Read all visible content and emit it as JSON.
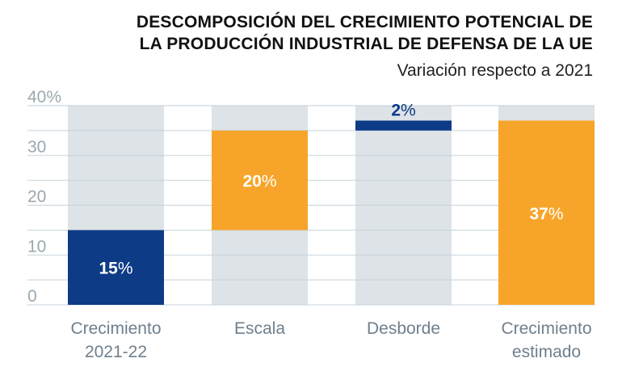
{
  "chart_data": {
    "type": "bar",
    "subtype": "waterfall",
    "title_lines": [
      "DESCOMPOSICIÓN DEL CRECIMIENTO POTENCIAL DE",
      "LA PRODUCCIÓN INDUSTRIAL DE DEFENSA DE LA UE"
    ],
    "subtitle": "Variación respecto a 2021",
    "xlabel": "",
    "ylabel": "",
    "ylim": [
      0,
      40
    ],
    "yticks": [
      0,
      10,
      20,
      30,
      40
    ],
    "ytick_labels": [
      "0",
      "10",
      "20",
      "30",
      "40%"
    ],
    "grid": true,
    "categories": [
      [
        "Crecimiento",
        "2021-22"
      ],
      [
        "Escala"
      ],
      [
        "Desborde"
      ],
      [
        "Crecimiento",
        "estimado"
      ]
    ],
    "bars": [
      {
        "start": 0,
        "end": 15,
        "value": 15,
        "label_num": "15",
        "label_unit": "%",
        "color": "#0d3b86",
        "label_color": "#ffffff"
      },
      {
        "start": 15,
        "end": 35,
        "value": 20,
        "label_num": "20",
        "label_unit": "%",
        "color": "#f7a52a",
        "label_color": "#ffffff"
      },
      {
        "start": 35,
        "end": 37,
        "value": 2,
        "label_num": "2",
        "label_unit": "%",
        "color": "#0d3b86",
        "label_color": "#0d3b86"
      },
      {
        "start": 0,
        "end": 37,
        "value": 37,
        "label_num": "37",
        "label_unit": "%",
        "color": "#f7a52a",
        "label_color": "#ffffff"
      }
    ],
    "colors": {
      "navy": "#0d3b86",
      "orange": "#f7a52a",
      "column_background": "#dde3e7",
      "gridline": "#c5d2db",
      "tick_text": "#9aa7b1",
      "category_text": "#6f7f8c"
    }
  }
}
